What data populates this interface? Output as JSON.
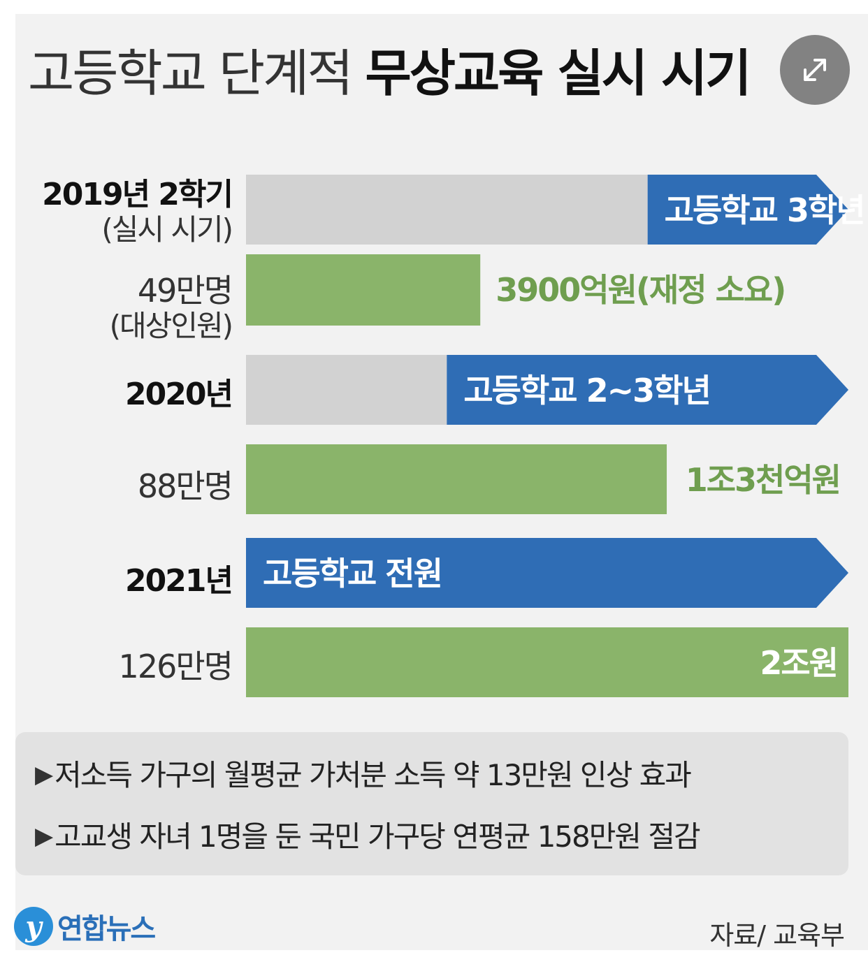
{
  "title": {
    "light": "고등학교 단계적",
    "bold": "무상교육 실시 시기"
  },
  "colors": {
    "blue": "#2f6db5",
    "green": "#8ab46a",
    "gray": "#d2d2d2",
    "blue_text": "#ffffff",
    "green_label": "#6f9e4f"
  },
  "header_labels": {
    "year": "2019년 2학기",
    "year_sub": "(실시 시기)",
    "count": "49만명",
    "count_sub": "(대상인원)"
  },
  "chart_data": {
    "type": "bar",
    "categories": [
      "2019년 2학기",
      "2020년",
      "2021년"
    ],
    "series": [
      {
        "name": "실시 시기",
        "values": [
          "고등학교 3학년",
          "고등학교 2~3학년",
          "고등학교 전원"
        ]
      },
      {
        "name": "대상인원",
        "values": [
          "49만명",
          "88만명",
          "126만명"
        ]
      },
      {
        "name": "재정 소요",
        "values": [
          "3900억원(재정 소요)",
          "1조3천억원",
          "2조원"
        ]
      }
    ],
    "students_10k": [
      49,
      88,
      126
    ],
    "budget_100m_won": [
      3900,
      13000,
      20000
    ],
    "grade_coverage": [
      1,
      2,
      3
    ]
  },
  "rows": [
    {
      "year": "2019년 2학기",
      "year_sub": "(실시 시기)",
      "grade": "고등학교 3학년",
      "count": "49만명",
      "count_sub": "(대상인원)",
      "budget": "3900억원(재정 소요)"
    },
    {
      "year": "2020년",
      "grade": "고등학교 2~3학년",
      "count": "88만명",
      "budget": "1조3천억원"
    },
    {
      "year": "2021년",
      "grade": "고등학교 전원",
      "count": "126만명",
      "budget": "2조원"
    }
  ],
  "notes": [
    "저소득 가구의 월평균 가처분 소득 약 13만원 인상 효과",
    "고교생 자녀 1명을 둔 국민 가구당 연평균 158만원 절감"
  ],
  "logo": {
    "mark": "y",
    "text": "연합뉴스"
  },
  "source": "자료/ 교육부"
}
